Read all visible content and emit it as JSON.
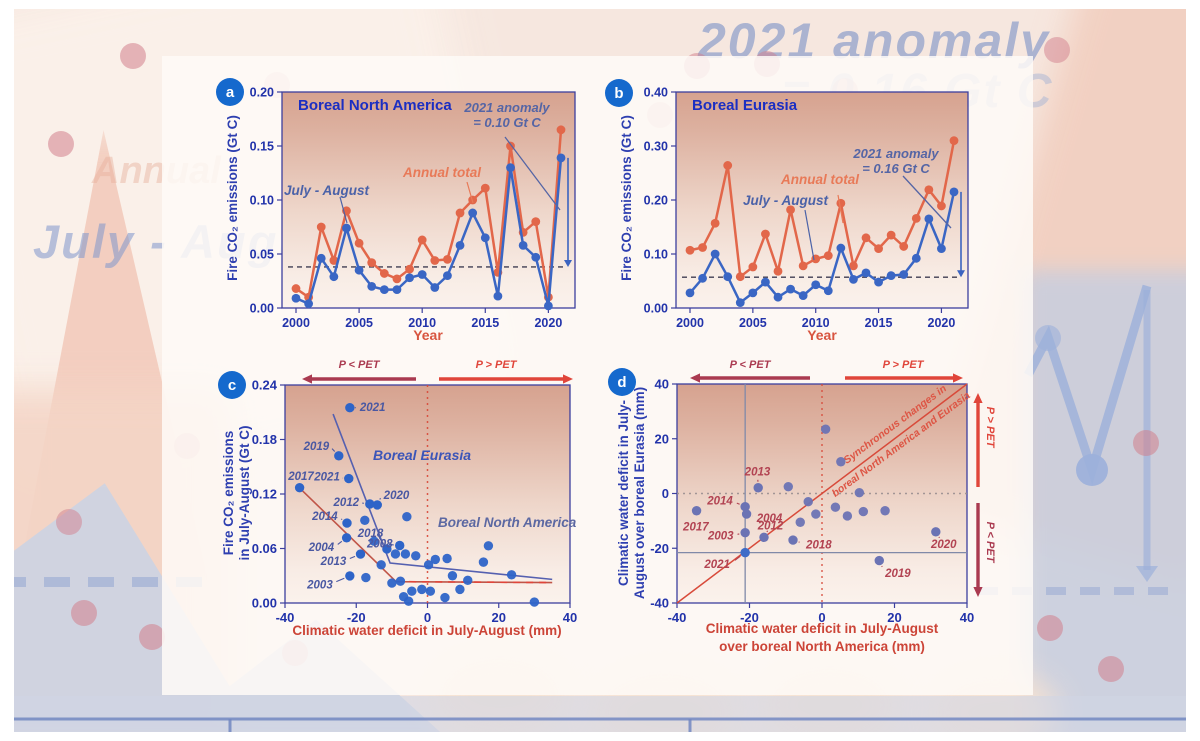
{
  "background": {
    "watermark_top": "2021 anomaly",
    "watermark_top2": "= 0.16 Gt C",
    "watermark_left": "July - Augu",
    "watermark_left2": "Annual"
  },
  "colors": {
    "blue_series": "#3a66c4",
    "red_series": "#e2674a",
    "axis": "#3c3f9e",
    "tick_text": "#2233aa",
    "dark_red_arrow": "#aa3a50",
    "bright_red_arrow": "#e0453a",
    "scatter_blue": "#2e64c8",
    "scatter_slate": "#6b73b4",
    "badge_blue": "#1569cd"
  },
  "chart_data": [
    {
      "id": "a",
      "badge": "a",
      "type": "line",
      "title": "Boreal North America",
      "xlabel": "Year",
      "ylabel": "Fire CO₂ emissions (Gt C)",
      "x": [
        2000,
        2001,
        2002,
        2003,
        2004,
        2005,
        2006,
        2007,
        2008,
        2009,
        2010,
        2011,
        2012,
        2013,
        2014,
        2015,
        2016,
        2017,
        2018,
        2019,
        2020,
        2021
      ],
      "xticks": [
        2000,
        2005,
        2010,
        2015,
        2020
      ],
      "yticks": [
        0,
        0.05,
        0.1,
        0.15,
        0.2
      ],
      "ylim": [
        0,
        0.2
      ],
      "ytick_decimals": 2,
      "series": [
        {
          "name": "Annual total",
          "color": "#e2674a",
          "values": [
            0.018,
            0.01,
            0.075,
            0.044,
            0.09,
            0.06,
            0.042,
            0.032,
            0.027,
            0.036,
            0.063,
            0.044,
            0.045,
            0.088,
            0.1,
            0.111,
            0.033,
            0.15,
            0.07,
            0.08,
            0.01,
            0.165
          ]
        },
        {
          "name": "July - August",
          "color": "#3a66c4",
          "values": [
            0.009,
            0.004,
            0.046,
            0.029,
            0.074,
            0.035,
            0.02,
            0.017,
            0.017,
            0.028,
            0.031,
            0.019,
            0.03,
            0.058,
            0.088,
            0.065,
            0.011,
            0.13,
            0.058,
            0.047,
            0.002,
            0.139
          ]
        }
      ],
      "mean_line": 0.038,
      "anomaly": {
        "year": 2021,
        "from": 0.038,
        "to": 0.139,
        "label_line1": "2021 anomaly",
        "label_line2": "= 0.10 Gt C"
      }
    },
    {
      "id": "b",
      "badge": "b",
      "type": "line",
      "title": "Boreal Eurasia",
      "xlabel": "Year",
      "ylabel": "Fire CO₂ emissions (Gt C)",
      "x": [
        2000,
        2001,
        2002,
        2003,
        2004,
        2005,
        2006,
        2007,
        2008,
        2009,
        2010,
        2011,
        2012,
        2013,
        2014,
        2015,
        2016,
        2017,
        2018,
        2019,
        2020,
        2021
      ],
      "xticks": [
        2000,
        2005,
        2010,
        2015,
        2020
      ],
      "yticks": [
        0,
        0.1,
        0.2,
        0.3,
        0.4
      ],
      "ylim": [
        0,
        0.4
      ],
      "ytick_decimals": 2,
      "series": [
        {
          "name": "Annual total",
          "color": "#e2674a",
          "values": [
            0.107,
            0.112,
            0.157,
            0.264,
            0.058,
            0.076,
            0.137,
            0.068,
            0.182,
            0.078,
            0.091,
            0.097,
            0.194,
            0.078,
            0.13,
            0.11,
            0.135,
            0.114,
            0.166,
            0.219,
            0.189,
            0.31
          ]
        },
        {
          "name": "July - August",
          "color": "#3a66c4",
          "values": [
            0.028,
            0.055,
            0.1,
            0.058,
            0.01,
            0.028,
            0.048,
            0.02,
            0.035,
            0.023,
            0.043,
            0.032,
            0.111,
            0.053,
            0.065,
            0.048,
            0.06,
            0.062,
            0.092,
            0.165,
            0.11,
            0.215
          ]
        }
      ],
      "mean_line": 0.057,
      "anomaly": {
        "year": 2021,
        "from": 0.057,
        "to": 0.215,
        "label_line1": "2021 anomaly",
        "label_line2": "= 0.16 Gt C"
      }
    },
    {
      "id": "c",
      "badge": "c",
      "type": "scatter",
      "xlabel": "Climatic water deficit in July-August (mm)",
      "ylabel_line1": "Fire CO₂ emissions",
      "ylabel_line2": "in July-August (Gt C)",
      "xlim": [
        -40,
        40
      ],
      "ylim": [
        0,
        0.24
      ],
      "xticks": [
        -40,
        -20,
        0,
        20,
        40
      ],
      "yticks": [
        0,
        0.06,
        0.12,
        0.18,
        0.24
      ],
      "ytick_decimals": 2,
      "pet_left": "P < PET",
      "pet_right": "P > PET",
      "regions": [
        {
          "name": "Boreal Eurasia"
        },
        {
          "name": "Boreal North America"
        }
      ],
      "trend_eurasia": [
        [
          -26.5,
          0.208
        ],
        [
          -10.5,
          0.044
        ],
        [
          35,
          0.026
        ]
      ],
      "trend_na_solid": [
        [
          -36,
          0.127
        ],
        [
          -8.8,
          0.0235
        ],
        [
          35,
          0.0225
        ]
      ],
      "trend_na_dashed": [
        [
          -8.8,
          0.0235
        ],
        [
          35,
          0.0225
        ]
      ],
      "labeled_points": [
        {
          "year": "2021",
          "x": -21.8,
          "y": 0.215,
          "lx": -19.0,
          "ly": 0.216,
          "anchor": "start",
          "la": [
            -20.4,
            0.215
          ]
        },
        {
          "year": "2019",
          "x": -24.9,
          "y": 0.162,
          "lx": -27.6,
          "ly": 0.173,
          "anchor": "end",
          "la": [
            -26.8,
            0.17
          ]
        },
        {
          "year": "2017",
          "x": -35.9,
          "y": 0.127,
          "lx": -35.5,
          "ly": 0.14,
          "anchor": "middle"
        },
        {
          "year": "2021",
          "x": -22.1,
          "y": 0.137,
          "lx": -24.6,
          "ly": 0.139,
          "anchor": "end",
          "la": [
            -23.7,
            0.1375
          ]
        },
        {
          "year": "2012",
          "x": -16.2,
          "y": 0.109,
          "lx": -19.2,
          "ly": 0.111,
          "anchor": "end",
          "la": [
            -18.3,
            0.11
          ]
        },
        {
          "year": "2020",
          "x": -14.1,
          "y": 0.108,
          "lx": -12.3,
          "ly": 0.119,
          "anchor": "start",
          "la": [
            -13.2,
            0.1155
          ]
        },
        {
          "year": "2014",
          "x": -22.6,
          "y": 0.088,
          "lx": -25.2,
          "ly": 0.096,
          "anchor": "end",
          "la": [
            -24.2,
            0.0925
          ]
        },
        {
          "year": "2018",
          "x": -11.4,
          "y": 0.0595,
          "lx": -16.0,
          "ly": 0.077,
          "anchor": "middle",
          "la": [
            -13.6,
            0.0725
          ]
        },
        {
          "year": "2008",
          "x": -7.8,
          "y": 0.0633,
          "lx": -13.4,
          "ly": 0.0655,
          "anchor": "middle",
          "la": [
            -10.8,
            0.0645
          ]
        },
        {
          "year": "2004",
          "x": -22.7,
          "y": 0.0718,
          "lx": -26.2,
          "ly": 0.0615,
          "anchor": "end",
          "la": [
            -25.2,
            0.0645
          ]
        },
        {
          "year": "2013",
          "x": -18.8,
          "y": 0.0539,
          "lx": -22.8,
          "ly": 0.0465,
          "anchor": "end",
          "la": [
            -21.8,
            0.049
          ]
        },
        {
          "year": "2003",
          "x": -21.8,
          "y": 0.0298,
          "lx": -26.6,
          "ly": 0.0205,
          "anchor": "end",
          "la": [
            -25.6,
            0.0235
          ]
        }
      ],
      "points": [
        [
          -17.6,
          0.091
        ],
        [
          -5.8,
          0.095
        ],
        [
          -15,
          0.068
        ],
        [
          -6.2,
          0.054
        ],
        [
          -3.3,
          0.052
        ],
        [
          2.2,
          0.048
        ],
        [
          -13,
          0.042
        ],
        [
          -9,
          0.054
        ],
        [
          -17.3,
          0.028
        ],
        [
          -10,
          0.022
        ],
        [
          -7.6,
          0.024
        ],
        [
          -6.7,
          0.007
        ],
        [
          -4.4,
          0.013
        ],
        [
          -1.6,
          0.015
        ],
        [
          0.8,
          0.013
        ],
        [
          4.9,
          0.006
        ],
        [
          9.1,
          0.015
        ],
        [
          7,
          0.03
        ],
        [
          11.3,
          0.025
        ],
        [
          15.7,
          0.045
        ],
        [
          17.1,
          0.063
        ],
        [
          23.6,
          0.031
        ],
        [
          30,
          0.001
        ],
        [
          -5.3,
          0.002
        ],
        [
          0.3,
          0.042
        ],
        [
          5.5,
          0.049
        ]
      ]
    },
    {
      "id": "d",
      "badge": "d",
      "type": "scatter",
      "xlabel_line1": "Climatic water deficit in July-August",
      "xlabel_line2": "over boreal North America (mm)",
      "ylabel_line1": "Climatic water deficit in July-",
      "ylabel_line2": "August over boreal Eurasia (mm)",
      "xlim": [
        -40,
        40
      ],
      "ylim": [
        -40,
        40
      ],
      "xticks": [
        -40,
        -20,
        0,
        20,
        40
      ],
      "yticks": [
        -40,
        -20,
        0,
        20,
        40
      ],
      "ytick_decimals": 0,
      "pet_left": "P < PET",
      "pet_right": "P > PET",
      "pet_up": "P > PET",
      "pet_down": "P < PET",
      "diag_label_line1": "Synchronous changes in",
      "diag_label_line2": "boreal North America and Eurasia",
      "identity_line": [
        [
          -40,
          -40
        ],
        [
          40,
          40
        ]
      ],
      "crosshair": {
        "x": -21.2,
        "y": -21.6
      },
      "labeled_points": [
        {
          "year": "2013",
          "x": -17.6,
          "y": 2.1,
          "lx": -17.8,
          "ly": 8.0,
          "anchor": "middle",
          "la": [
            -17.7,
            5.0
          ]
        },
        {
          "year": "2014",
          "x": -21.2,
          "y": -4.8,
          "lx": -24.6,
          "ly": -2.6,
          "anchor": "end",
          "la": [
            -23.5,
            -3.5
          ]
        },
        {
          "year": "2004",
          "x": -20.8,
          "y": -7.5,
          "lx": -18.0,
          "ly": -9.0,
          "anchor": "start",
          "la": [
            -19.2,
            -8.2
          ]
        },
        {
          "year": "2017",
          "x": -34.6,
          "y": -6.3,
          "lx": -34.8,
          "ly": -12.0,
          "anchor": "middle"
        },
        {
          "year": "2003",
          "x": -21.2,
          "y": -14.3,
          "lx": -24.4,
          "ly": -15.4,
          "anchor": "end",
          "la": [
            -23.3,
            -14.9
          ]
        },
        {
          "year": "2012",
          "x": -16.0,
          "y": -16.0,
          "lx": -14.2,
          "ly": -11.6,
          "anchor": "middle",
          "la": [
            -15.0,
            -13.6
          ]
        },
        {
          "year": "2018",
          "x": -8.0,
          "y": -17.0,
          "lx": -4.4,
          "ly": -18.6,
          "anchor": "start",
          "la": [
            -6.2,
            -17.8
          ]
        },
        {
          "year": "2021",
          "x": -21.2,
          "y": -21.6,
          "lx": -25.4,
          "ly": -25.8,
          "anchor": "end",
          "la": [
            -24.0,
            -24.4
          ],
          "hl": true
        },
        {
          "year": "2019",
          "x": 15.8,
          "y": -24.5,
          "lx": 17.4,
          "ly": -29.0,
          "anchor": "start",
          "la": [
            16.6,
            -26.8
          ]
        },
        {
          "year": "2020",
          "x": 31.4,
          "y": -14.0,
          "lx": 33.6,
          "ly": -18.4,
          "anchor": "middle",
          "la": [
            32.4,
            -16.2
          ]
        }
      ],
      "points": [
        [
          1,
          23.5
        ],
        [
          5.2,
          11.6
        ],
        [
          -9.3,
          2.5
        ],
        [
          10.3,
          0.3
        ],
        [
          -3.8,
          -3
        ],
        [
          -1.7,
          -7.5
        ],
        [
          3.7,
          -5
        ],
        [
          7,
          -8.2
        ],
        [
          11.4,
          -6.6
        ],
        [
          17.4,
          -6.3
        ],
        [
          -6,
          -10.5
        ]
      ]
    }
  ]
}
